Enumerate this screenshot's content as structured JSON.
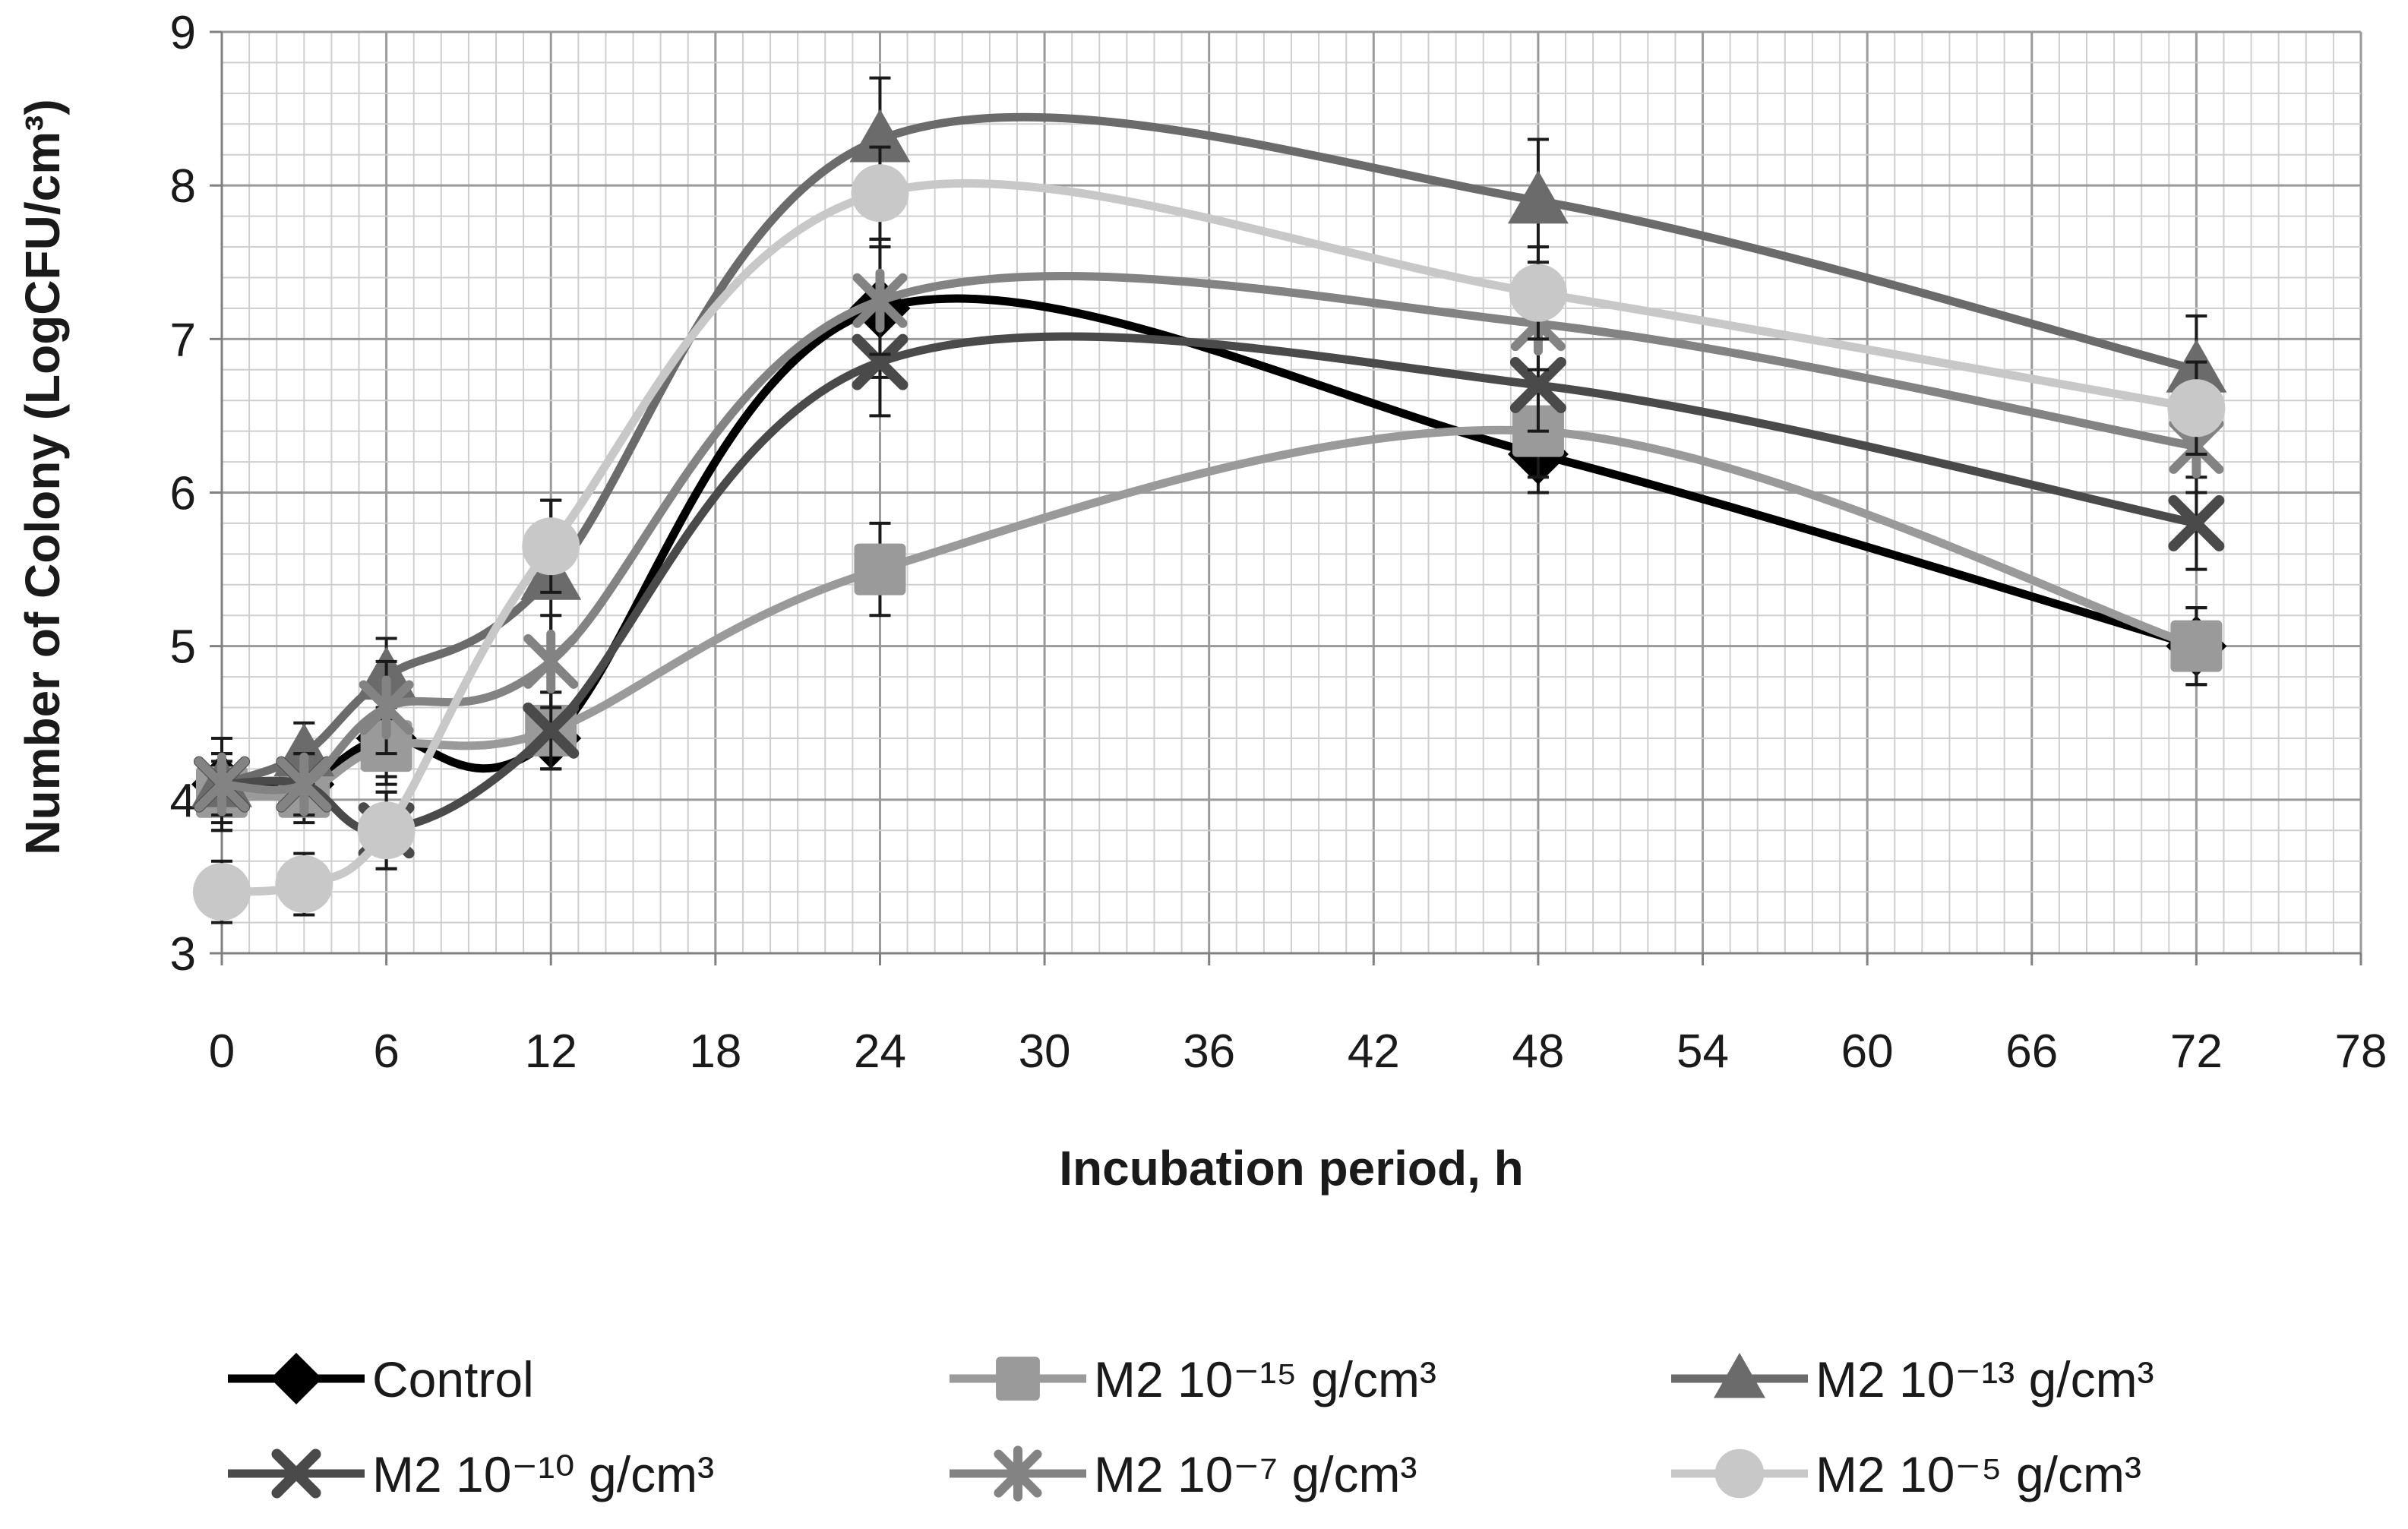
{
  "chart_data": {
    "type": "line",
    "title": "",
    "xlabel": "Incubation period, h",
    "ylabel": "Number of Colony (LogCFU/cm³)",
    "xlim": [
      0,
      78
    ],
    "ylim": [
      3,
      9
    ],
    "xticks": [
      "0",
      "6",
      "12",
      "18",
      "24",
      "30",
      "36",
      "42",
      "48",
      "54",
      "60",
      "66",
      "72",
      "78"
    ],
    "yticks": [
      "3",
      "4",
      "5",
      "6",
      "7",
      "8",
      "9"
    ],
    "grid": true,
    "legend_position": "bottom",
    "x": [
      0,
      3,
      6,
      12,
      24,
      48,
      72
    ],
    "series": [
      {
        "name": "Control",
        "label": "Control",
        "color": "#000000",
        "marker": "diamond",
        "values": [
          4.1,
          4.1,
          4.4,
          4.4,
          7.2,
          6.25,
          5.0
        ],
        "errors": [
          0.3,
          0.2,
          0.25,
          0.2,
          0.45,
          0.25,
          0.25
        ]
      },
      {
        "name": "M2 10−15 g/cm3",
        "label": "M2 10⁻¹⁵ g/cm³",
        "color": "#9a9a9a",
        "marker": "square",
        "values": [
          4.05,
          4.05,
          4.35,
          4.45,
          5.5,
          6.4,
          5.0
        ],
        "errors": [
          0.2,
          0.2,
          0.25,
          0.25,
          0.3,
          0.3,
          0.25
        ]
      },
      {
        "name": "M2 10−13 g/cm3",
        "label": "M2 10⁻¹³ g/cm³",
        "color": "#6b6b6b",
        "marker": "triangle",
        "values": [
          4.1,
          4.3,
          4.8,
          5.45,
          8.3,
          7.9,
          6.8
        ],
        "errors": [
          0.3,
          0.2,
          0.25,
          0.5,
          0.4,
          0.4,
          0.35
        ]
      },
      {
        "name": "M2 10−10 g/cm3",
        "label": "M2 10⁻¹⁰ g/cm³",
        "color": "#4a4a4a",
        "marker": "x",
        "values": [
          4.1,
          4.1,
          3.8,
          4.45,
          6.85,
          6.7,
          5.8
        ],
        "errors": [
          0.2,
          0.2,
          0.25,
          0.25,
          0.35,
          0.3,
          0.3
        ]
      },
      {
        "name": "M2 10−7 g/cm3",
        "label": "M2 10⁻⁷ g/cm³",
        "color": "#838383",
        "marker": "star",
        "values": [
          4.1,
          4.1,
          4.6,
          4.9,
          7.25,
          7.1,
          6.3
        ],
        "errors": [
          0.2,
          0.2,
          0.3,
          0.3,
          0.35,
          0.3,
          0.3
        ]
      },
      {
        "name": "M2 10−5 g/cm3",
        "label": "M2 10⁻⁵ g/cm³",
        "color": "#c8c8c8",
        "marker": "circle",
        "values": [
          3.4,
          3.45,
          3.8,
          5.65,
          7.95,
          7.3,
          6.55
        ],
        "errors": [
          0.2,
          0.2,
          0.25,
          0.3,
          0.3,
          0.3,
          0.3
        ]
      }
    ]
  }
}
